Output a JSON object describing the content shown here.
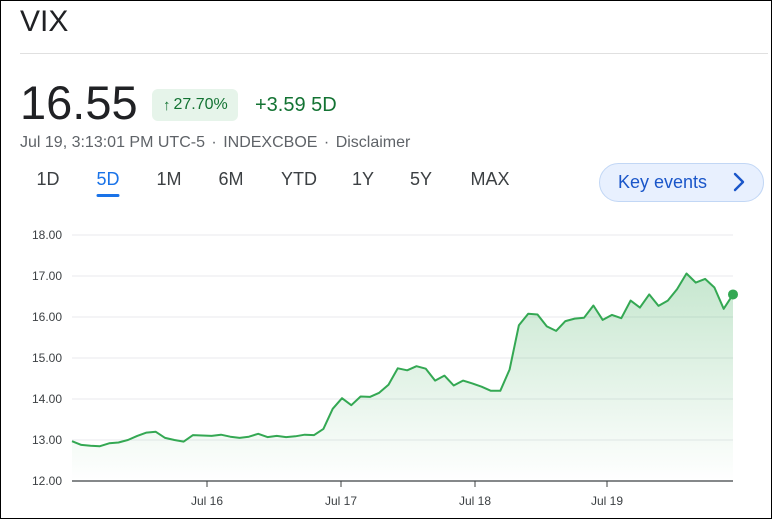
{
  "header": {
    "title": "VIX",
    "price": "16.55",
    "change_percent": "27.70%",
    "change_direction": "up",
    "change_abs": "+3.59 5D",
    "meta": {
      "timestamp": "Jul 19, 3:13:01 PM UTC-5",
      "separator": "·",
      "exchange": "INDEXCBOE",
      "disclaimer": "Disclaimer"
    }
  },
  "ranges": {
    "items": [
      "1D",
      "5D",
      "1M",
      "6M",
      "YTD",
      "1Y",
      "5Y",
      "MAX"
    ],
    "active": "5D"
  },
  "key_events": {
    "label": "Key events",
    "icon": "chevron-right-icon"
  },
  "colors": {
    "accent": "#1a73e8",
    "positive": "#137333",
    "line": "#34a853",
    "badge_bg": "#e6f4ea"
  },
  "chart_data": {
    "type": "area",
    "title": "",
    "xlabel": "",
    "ylabel": "",
    "ylim": [
      12,
      18
    ],
    "yticks": [
      "18.00",
      "17.00",
      "16.00",
      "15.00",
      "14.00",
      "13.00",
      "12.00"
    ],
    "x_ticks": [
      "Jul 16",
      "Jul 17",
      "Jul 18",
      "Jul 19"
    ],
    "grid": true,
    "series": [
      {
        "values": [
          12.97,
          12.88,
          12.86,
          12.85,
          12.92,
          12.94,
          13.0,
          13.1,
          13.18,
          13.2,
          13.05,
          13.0,
          12.96,
          13.12,
          13.11,
          13.1,
          13.13,
          13.08,
          13.05,
          13.08,
          13.15,
          13.07,
          13.1,
          13.07,
          13.09,
          13.13,
          13.12,
          13.27,
          13.76,
          14.02,
          13.85,
          14.06,
          14.05,
          14.15,
          14.35,
          14.75,
          14.7,
          14.8,
          14.74,
          14.45,
          14.57,
          14.33,
          14.45,
          14.38,
          14.3,
          14.2,
          14.2,
          14.72,
          15.8,
          16.08,
          16.06,
          15.77,
          15.66,
          15.9,
          15.96,
          15.98,
          16.28,
          15.93,
          16.05,
          15.97,
          16.4,
          16.23,
          16.55,
          16.27,
          16.4,
          16.68,
          17.06,
          16.84,
          16.93,
          16.72,
          16.2,
          16.55
        ]
      }
    ]
  }
}
